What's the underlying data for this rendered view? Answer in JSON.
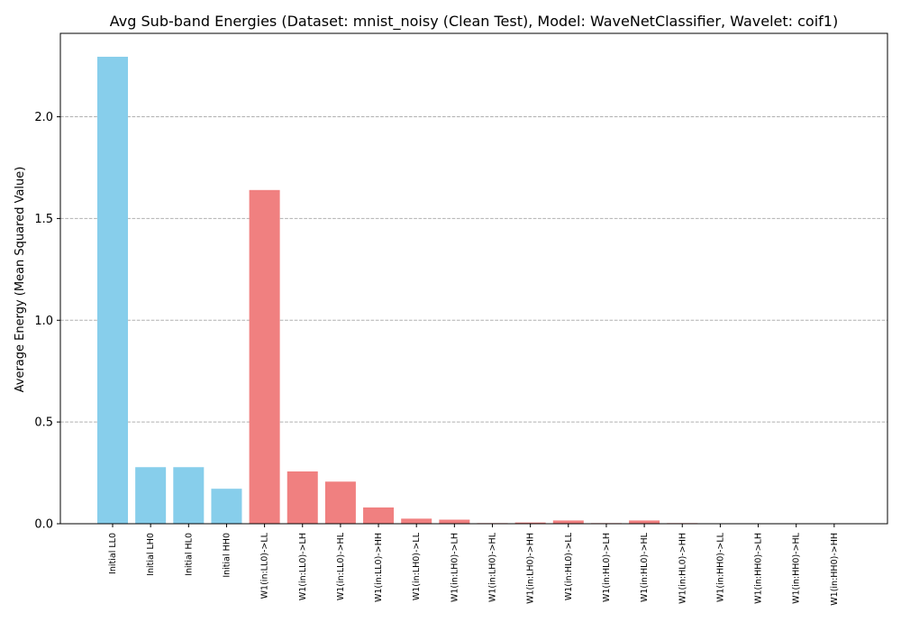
{
  "chart_data": {
    "type": "bar",
    "title": "Avg Sub-band Energies (Dataset: mnist_noisy (Clean Test), Model: WaveNetClassifier, Wavelet: coif1)",
    "xlabel": "",
    "ylabel": "Average Energy (Mean Squared Value)",
    "ylim": [
      0,
      2.41
    ],
    "yticks": [
      {
        "value": 0.0,
        "label": "0.0"
      },
      {
        "value": 0.5,
        "label": "0.5"
      },
      {
        "value": 1.0,
        "label": "1.0"
      },
      {
        "value": 1.5,
        "label": "1.5"
      },
      {
        "value": 2.0,
        "label": "2.0"
      }
    ],
    "grid": "horizontal dashed",
    "categories": [
      "Initial LL0",
      "Initial LH0",
      "Initial HL0",
      "Initial HH0",
      "W1(in:LL0)->LL",
      "W1(in:LL0)->LH",
      "W1(in:LL0)->HL",
      "W1(in:LL0)->HH",
      "W1(in:LH0)->LL",
      "W1(in:LH0)->LH",
      "W1(in:LH0)->HL",
      "W1(in:LH0)->HH",
      "W1(in:HL0)->LL",
      "W1(in:HL0)->LH",
      "W1(in:HL0)->HL",
      "W1(in:HL0)->HH",
      "W1(in:HH0)->LL",
      "W1(in:HH0)->LH",
      "W1(in:HH0)->HL",
      "W1(in:HH0)->HH"
    ],
    "values": [
      2.295,
      0.278,
      0.278,
      0.172,
      1.64,
      0.257,
      0.207,
      0.08,
      0.025,
      0.02,
      0.003,
      0.006,
      0.016,
      0.003,
      0.016,
      0.003,
      0.0005,
      0.0005,
      0.0005,
      0.0005
    ],
    "colors": [
      "#87CEEB",
      "#87CEEB",
      "#87CEEB",
      "#87CEEB",
      "#F08080",
      "#F08080",
      "#F08080",
      "#F08080",
      "#F08080",
      "#F08080",
      "#F08080",
      "#F08080",
      "#F08080",
      "#F08080",
      "#F08080",
      "#F08080",
      "#F08080",
      "#F08080",
      "#F08080",
      "#F08080"
    ]
  }
}
